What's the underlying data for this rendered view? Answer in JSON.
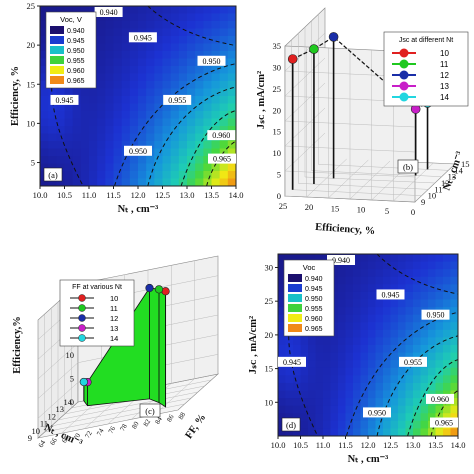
{
  "chart_data": [
    {
      "type": "heatmap",
      "panel_label": "(a)",
      "xlabel": "Nₜ , cm⁻³",
      "ylabel": "Efficiency, %",
      "x_ticks": [
        "10.0",
        "10.5",
        "11.0",
        "11.5",
        "12.0",
        "12.5",
        "13.0",
        "13.5",
        "14.0"
      ],
      "y_ticks": [
        "5",
        "10",
        "15",
        "20",
        "25"
      ],
      "xlim": [
        10.0,
        14.0
      ],
      "ylim": [
        2,
        25
      ],
      "legend_title": "Voc, V",
      "legend": [
        "0.940",
        "0.945",
        "0.950",
        "0.955",
        "0.960",
        "0.965"
      ],
      "legend_colors": [
        "#1b0f6e",
        "#1a3cd0",
        "#19c0c8",
        "#3fd23c",
        "#f0ec14",
        "#f08a18"
      ],
      "contour_labels": [
        {
          "text": "0.940",
          "x": 11.4,
          "y": 25
        },
        {
          "text": "0.945",
          "x": 12.1,
          "y": 21
        },
        {
          "text": "0.950",
          "x": 13.5,
          "y": 18
        },
        {
          "text": "0.945",
          "x": 10.5,
          "y": 13
        },
        {
          "text": "0.955",
          "x": 12.8,
          "y": 13
        },
        {
          "text": "0.950",
          "x": 12.0,
          "y": 6.5
        },
        {
          "text": "0.960",
          "x": 13.7,
          "y": 8.5
        },
        {
          "text": "0.965",
          "x": 13.9,
          "y": 5.5
        }
      ]
    },
    {
      "type": "scatter3d",
      "panel_label": "(b)",
      "xlabel": "Efficiency, %",
      "ylabel": "Nₜ , cm⁻³",
      "zlabel": "Jₛᴄ , mA/cm²",
      "x_ticks": [
        "25",
        "20",
        "15",
        "10",
        "5",
        "0"
      ],
      "y_ticks": [
        "9",
        "10",
        "11",
        "12",
        "13",
        "14",
        "15"
      ],
      "z_ticks": [
        "0",
        "5",
        "10",
        "15",
        "20",
        "25",
        "30",
        "35"
      ],
      "legend_title": "Jsc at different Nt",
      "series": [
        {
          "name": "10",
          "color": "#e02020",
          "efficiency": 24.8,
          "nt": 10,
          "jsc": 30.5
        },
        {
          "name": "11",
          "color": "#1fc81f",
          "efficiency": 22.0,
          "nt": 11,
          "jsc": 31.5
        },
        {
          "name": "12",
          "color": "#1a2ea8",
          "efficiency": 19.5,
          "nt": 12,
          "jsc": 33.0
        },
        {
          "name": "13",
          "color": "#c81ec8",
          "efficiency": 5.0,
          "nt": 13,
          "jsc": 15.5
        },
        {
          "name": "14",
          "color": "#22d6e0",
          "efficiency": 4.0,
          "nt": 14,
          "jsc": 15.5
        }
      ]
    },
    {
      "type": "scatter3d",
      "panel_label": "(c)",
      "xlabel": "FF, %",
      "ylabel": "Nₜ , cm⁻³",
      "zlabel": "Efficiency,%",
      "x_ticks": [
        "64",
        "66",
        "68",
        "70",
        "72",
        "74",
        "76",
        "78",
        "80",
        "82",
        "84",
        "86",
        "88"
      ],
      "y_ticks": [
        "9",
        "10",
        "11",
        "12",
        "13",
        "14"
      ],
      "z_ticks": [
        "0",
        "5",
        "10",
        "15",
        "20",
        "25"
      ],
      "legend_title": "FF at various Nt",
      "series": [
        {
          "name": "10",
          "color": "#e02020",
          "ff": 84.5,
          "nt": 10,
          "efficiency": 24.5
        },
        {
          "name": "11",
          "color": "#1fc81f",
          "ff": 82.0,
          "nt": 11,
          "efficiency": 24.0
        },
        {
          "name": "12",
          "color": "#1a2ea8",
          "ff": 79.0,
          "nt": 12,
          "efficiency": 23.5
        },
        {
          "name": "13",
          "color": "#c81ec8",
          "ff": 67.0,
          "nt": 13,
          "efficiency": 5.0
        },
        {
          "name": "14",
          "color": "#22d6e0",
          "ff": 65.0,
          "nt": 14,
          "efficiency": 4.0
        }
      ]
    },
    {
      "type": "heatmap",
      "panel_label": "(d)",
      "xlabel": "Nₜ , cm⁻³",
      "ylabel": "Jₛᴄ , mA/cm²",
      "x_ticks": [
        "10.0",
        "10.5",
        "11.0",
        "11.5",
        "12.0",
        "12.5",
        "13.0",
        "13.5",
        "14.0"
      ],
      "y_ticks": [
        "10",
        "15",
        "20",
        "25",
        "30"
      ],
      "xlim": [
        10.0,
        14.0
      ],
      "ylim": [
        5,
        32
      ],
      "legend_title": "Voc",
      "legend": [
        "0.940",
        "0.945",
        "0.950",
        "0.955",
        "0.960",
        "0.965"
      ],
      "legend_colors": [
        "#1b0f6e",
        "#1a3cd0",
        "#19c0c8",
        "#3fd23c",
        "#f0ec14",
        "#f08a18"
      ],
      "contour_labels": [
        {
          "text": "0.940",
          "x": 11.4,
          "y": 32
        },
        {
          "text": "0.945",
          "x": 12.5,
          "y": 26
        },
        {
          "text": "0.950",
          "x": 13.5,
          "y": 23
        },
        {
          "text": "0.945",
          "x": 10.3,
          "y": 16
        },
        {
          "text": "0.955",
          "x": 13.0,
          "y": 16
        },
        {
          "text": "0.950",
          "x": 12.2,
          "y": 8.5
        },
        {
          "text": "0.960",
          "x": 13.6,
          "y": 10.5
        },
        {
          "text": "0.965",
          "x": 13.9,
          "y": 7
        }
      ]
    }
  ]
}
